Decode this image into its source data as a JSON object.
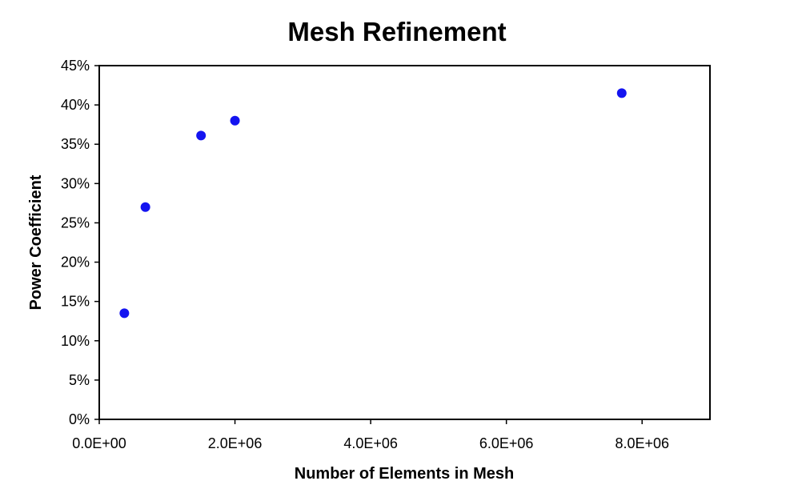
{
  "chart_data": {
    "type": "scatter",
    "title": "Mesh Refinement",
    "xlabel": "Number of Elements in Mesh",
    "ylabel": "Power Coefficient",
    "xlim": [
      0,
      9000000
    ],
    "ylim": [
      0,
      0.45
    ],
    "x_ticks": [
      0,
      2000000,
      4000000,
      6000000,
      8000000
    ],
    "x_tick_labels": [
      "0.0E+00",
      "2.0E+06",
      "4.0E+06",
      "6.0E+06",
      "8.0E+06"
    ],
    "y_ticks": [
      0,
      0.05,
      0.1,
      0.15,
      0.2,
      0.25,
      0.3,
      0.35,
      0.4,
      0.45
    ],
    "y_tick_labels": [
      "0%",
      "5%",
      "10%",
      "15%",
      "20%",
      "25%",
      "30%",
      "35%",
      "40%",
      "45%"
    ],
    "grid": false,
    "legend": "none",
    "marker_color": "#1414f0",
    "points": [
      {
        "x": 370000,
        "y": 0.135
      },
      {
        "x": 680000,
        "y": 0.27
      },
      {
        "x": 1500000,
        "y": 0.361
      },
      {
        "x": 2000000,
        "y": 0.38
      },
      {
        "x": 7700000,
        "y": 0.415
      }
    ]
  }
}
